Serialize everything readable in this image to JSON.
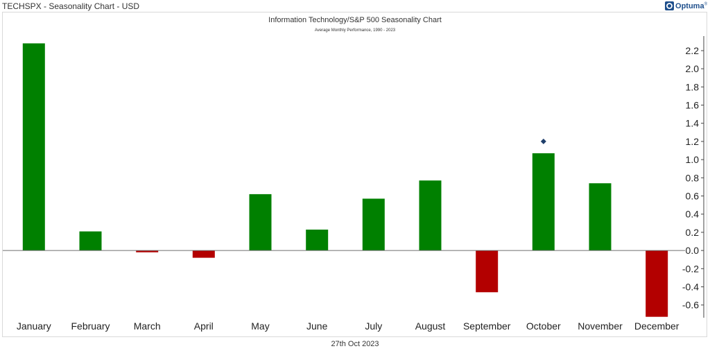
{
  "header": {
    "title": "TECHSPX - Seasonality Chart - USD",
    "brand": "Optuma",
    "brand_mark": "®",
    "brand_icon": "optuma-logo-icon"
  },
  "footer": {
    "date": "27th Oct 2023"
  },
  "chart_data": {
    "type": "bar",
    "title": "Information Technology/S&P 500 Seasonality Chart",
    "subtitle": "Average Monthly Performance, 1990 - 2023",
    "categories": [
      "January",
      "February",
      "March",
      "April",
      "May",
      "June",
      "July",
      "August",
      "September",
      "October",
      "November",
      "December"
    ],
    "values": [
      2.28,
      0.21,
      -0.02,
      -0.08,
      0.62,
      0.23,
      0.57,
      0.77,
      -0.46,
      1.07,
      0.74,
      -0.73
    ],
    "marker": {
      "category": "October",
      "value": 1.2,
      "shape": "diamond",
      "color": "#1f3f6b"
    },
    "ylim": [
      -0.74,
      2.36
    ],
    "yticks": [
      -0.6,
      -0.4,
      -0.2,
      0.0,
      0.2,
      0.4,
      0.6,
      0.8,
      1.0,
      1.2,
      1.4,
      1.6,
      1.8,
      2.0,
      2.2
    ],
    "ytick_labels": [
      "-0.6",
      "-0.4",
      "-0.2",
      "0.0",
      "0.2",
      "0.4",
      "0.6",
      "0.8",
      "1.0",
      "1.2",
      "1.4",
      "1.6",
      "1.8",
      "2.0",
      "2.2"
    ],
    "xlabel": "",
    "ylabel": "",
    "y_axis_position": "right",
    "grid": false,
    "colors": {
      "positive": "#008000",
      "negative": "#b30000",
      "axis": "#444444"
    }
  }
}
